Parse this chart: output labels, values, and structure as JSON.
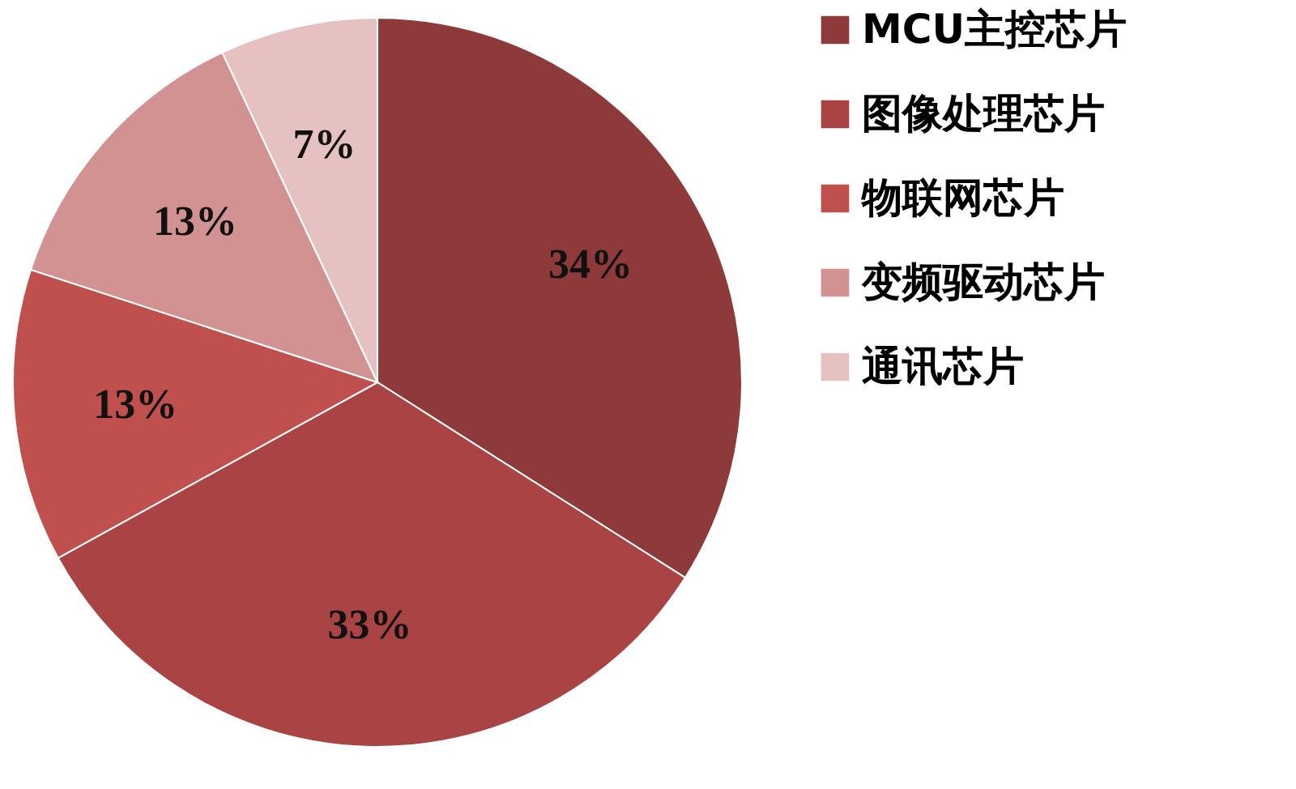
{
  "chart_data": {
    "type": "pie",
    "categories": [
      "MCU主控芯片",
      "图像处理芯片",
      "物联网芯片",
      "变频驱动芯片",
      "通讯芯片"
    ],
    "values": [
      34,
      33,
      13,
      13,
      7
    ],
    "colors": [
      "#8e3a3a",
      "#aa4444",
      "#c0504d",
      "#d39292",
      "#e6c1c1"
    ],
    "value_labels": [
      "34%",
      "33%",
      "13%",
      "13%",
      "7%"
    ],
    "legend": "right"
  }
}
